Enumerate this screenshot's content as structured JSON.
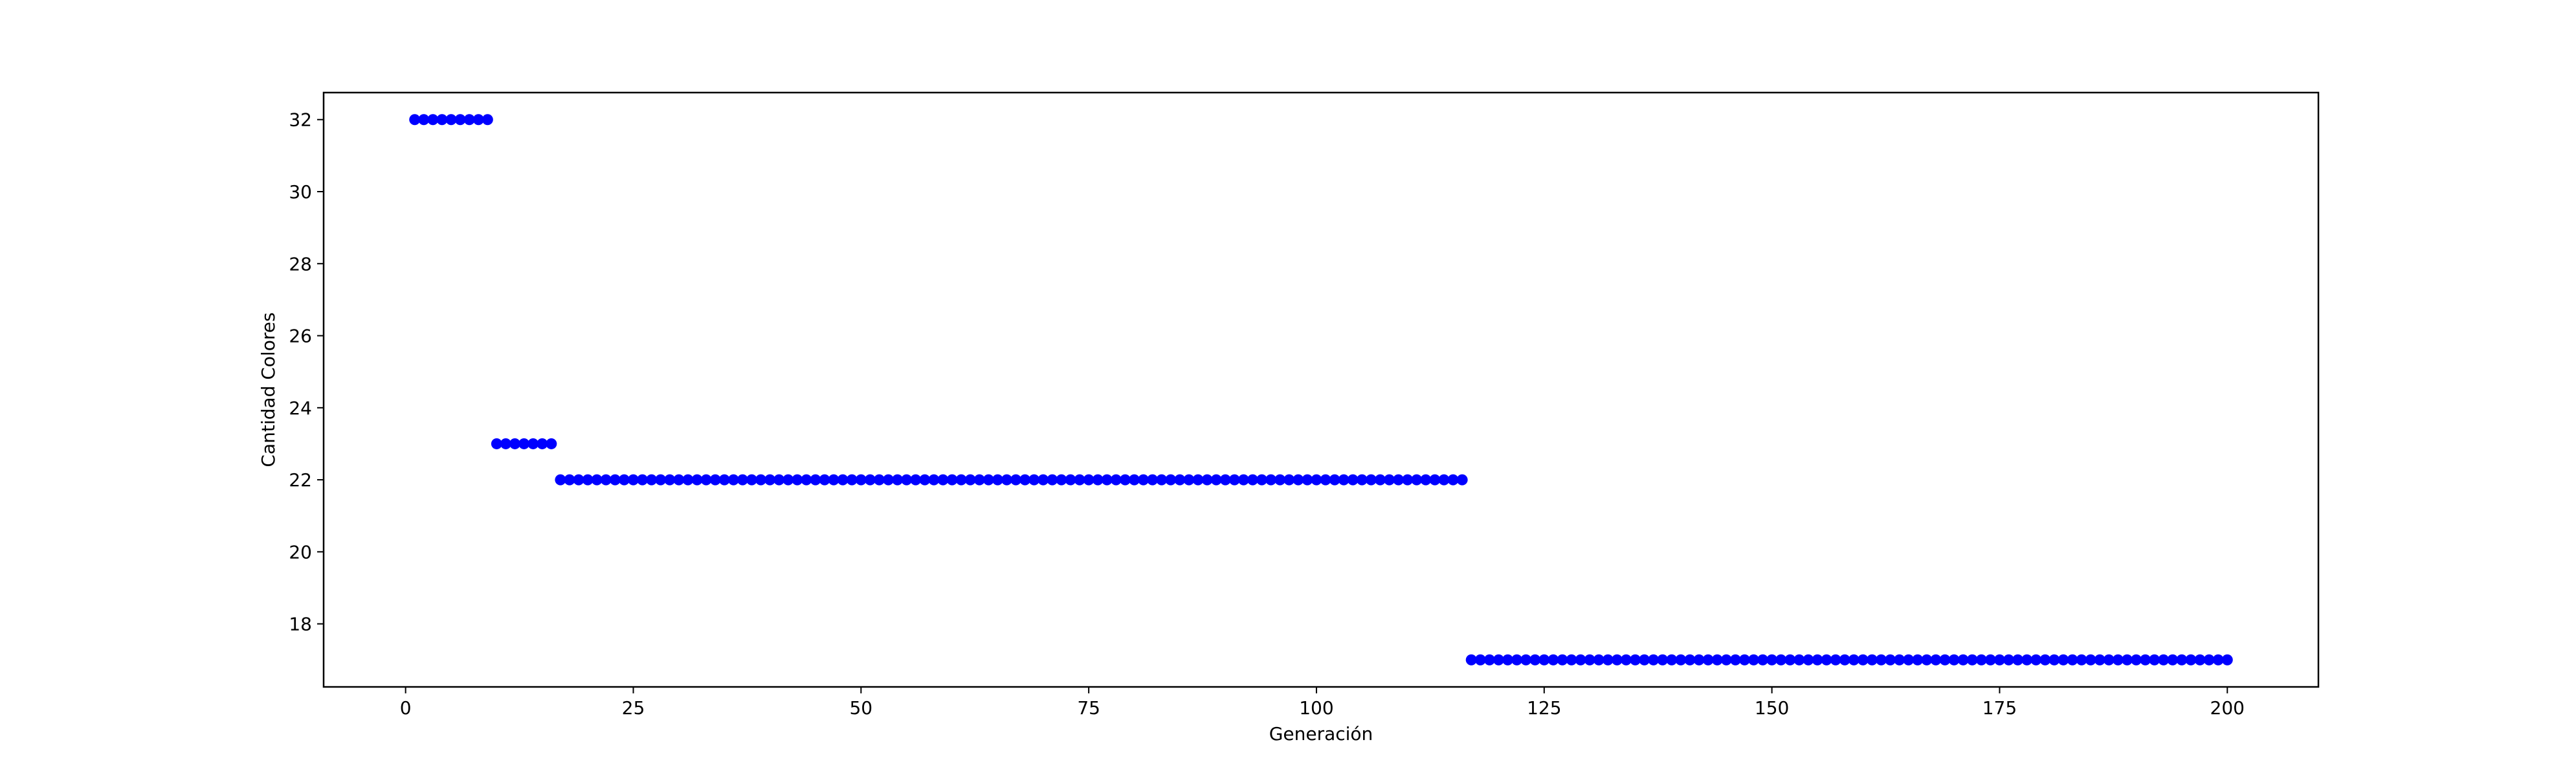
{
  "chart_data": {
    "type": "scatter",
    "title": "",
    "xlabel": "Generación",
    "ylabel": "Cantidad Colores",
    "xlim": [
      -9,
      210
    ],
    "ylim": [
      16.25,
      32.75
    ],
    "xticks": [
      0,
      25,
      50,
      75,
      100,
      125,
      150,
      175,
      200
    ],
    "yticks": [
      18,
      20,
      22,
      24,
      26,
      28,
      30,
      32
    ],
    "grid": false,
    "marker_color": "#0000ff",
    "series": [
      {
        "segments": [
          {
            "x_start": 1,
            "x_end": 9,
            "y": 32
          },
          {
            "x_start": 10,
            "x_end": 16,
            "y": 23
          },
          {
            "x_start": 17,
            "x_end": 116,
            "y": 22
          },
          {
            "x_start": 117,
            "x_end": 200,
            "y": 17
          }
        ]
      }
    ]
  }
}
